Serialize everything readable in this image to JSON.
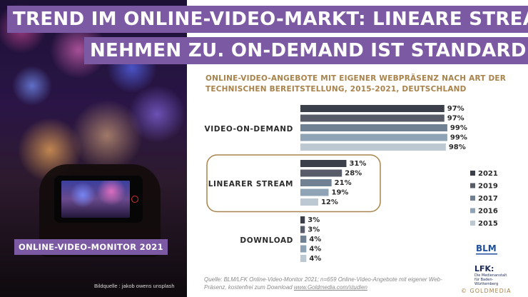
{
  "title_line_1": "TREND IM ONLINE-VIDEO-MARKT: LINEARE STREAMS",
  "title_line_2": "NEHMEN ZU. ON-DEMAND IST STANDARD.",
  "monitor_label": "ONLINE-VIDEO-MONITOR 2021",
  "photo_credit": "Bildquelle : jakob owens unsplash",
  "source_text": "Quelle: BLM/LFK Online-Video-Monitor 2021; n=659 Online-Video-Angebote mit eigener Web-Präsenz, kostenfrei zum Download ",
  "source_link": "www.Goldmedia.com/studien",
  "logo_blm_text": "BLM",
  "logo_lfk_text": "LFK:",
  "logo_lfk_sub": "Die Medienanstalt für Baden-Württemberg",
  "goldmedia_text": "© GOLDMEDIA",
  "colors": {
    "title_banner": "#7c5aa3",
    "subtitle": "#a8834b",
    "highlight_box": "#a8834b"
  },
  "chart_data": {
    "type": "bar",
    "orientation": "horizontal",
    "title": "ONLINE-VIDEO-ANGEBOTE MIT EIGENER WEBPRÄSENZ NACH ART DER TECHNISCHEN BEREITSTELLUNG, 2015-2021, DEUTSCHLAND",
    "categories": [
      "VIDEO-ON-DEMAND",
      "LINEARER STREAM",
      "DOWNLOAD"
    ],
    "unit": "%",
    "xlim": [
      0,
      100
    ],
    "grid": false,
    "legend_position": "right",
    "highlighted_category": "LINEARER STREAM",
    "series": [
      {
        "name": "2021",
        "color": "#3a3f4a",
        "values": [
          97,
          31,
          3
        ]
      },
      {
        "name": "2019",
        "color": "#585c68",
        "values": [
          97,
          28,
          3
        ]
      },
      {
        "name": "2017",
        "color": "#6f8193",
        "values": [
          99,
          21,
          4
        ]
      },
      {
        "name": "2016",
        "color": "#8ea3b5",
        "values": [
          99,
          19,
          4
        ]
      },
      {
        "name": "2015",
        "color": "#bcc8d2",
        "values": [
          98,
          12,
          4
        ]
      }
    ]
  }
}
